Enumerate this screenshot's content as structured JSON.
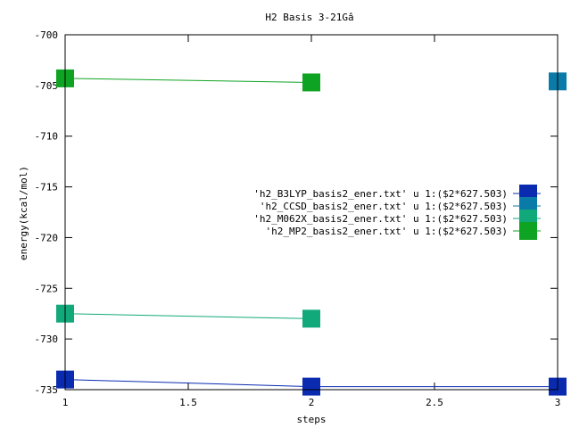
{
  "chart_data": {
    "type": "line",
    "title": "H2 Basis 3-21Gâ",
    "xlabel": "steps",
    "ylabel": "energy(kcal/mol)",
    "xlim": [
      1,
      3
    ],
    "ylim": [
      -735,
      -700
    ],
    "x_ticks": [
      1,
      1.5,
      2,
      2.5,
      3
    ],
    "x_tick_labels": [
      "1",
      "1.5",
      "2",
      "2.5",
      "3"
    ],
    "y_ticks": [
      -735,
      -730,
      -725,
      -720,
      -715,
      -710,
      -705,
      -700
    ],
    "y_tick_labels": [
      "-735",
      "-730",
      "-725",
      "-720",
      "-715",
      "-710",
      "-705",
      "-700"
    ],
    "grid": false,
    "legend_position": "right",
    "series": [
      {
        "name": "'h2_B3LYP_basis2_ener.txt' u 1:($2*627.503)",
        "color": "#0a2bb0",
        "points": [
          [
            1,
            -734.0
          ],
          [
            2,
            -734.7
          ],
          [
            3,
            -734.7
          ]
        ]
      },
      {
        "name": "'h2_CCSD_basis2_ener.txt' u 1:($2*627.503)",
        "color": "#0a7aa8",
        "points": [
          [
            3,
            -704.6
          ]
        ]
      },
      {
        "name": "'h2_M062X_basis2_ener.txt' u 1:($2*627.503)",
        "color": "#11a87a",
        "points": [
          [
            1,
            -727.5
          ],
          [
            2,
            -728.0
          ]
        ]
      },
      {
        "name": "'h2_MP2_basis2_ener.txt' u 1:($2*627.503)",
        "color": "#0fa323",
        "points": [
          [
            1,
            -704.3
          ],
          [
            2,
            -704.7
          ]
        ]
      }
    ]
  }
}
